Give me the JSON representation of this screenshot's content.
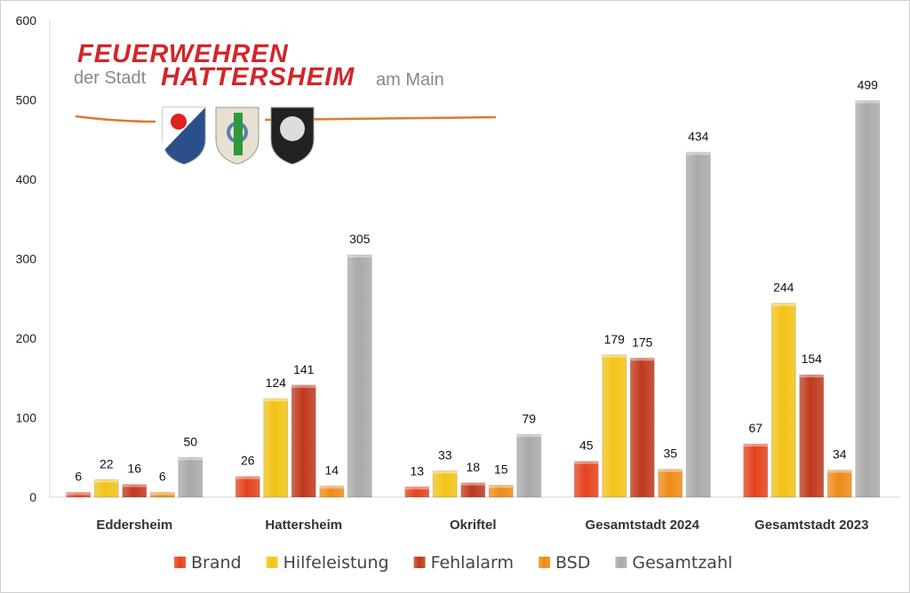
{
  "logo": {
    "line1": "FEUERWEHREN",
    "prefix": "der Stadt",
    "line2": "HATTERSHEIM",
    "suffix": "am Main"
  },
  "chart_data": {
    "type": "bar",
    "title": "",
    "xlabel": "",
    "ylabel": "",
    "ylim": [
      0,
      600
    ],
    "yticks": [
      0,
      100,
      200,
      300,
      400,
      500,
      600
    ],
    "grid": false,
    "legend_position": "bottom",
    "categories": [
      "Eddersheim",
      "Hattersheim",
      "Okriftel",
      "Gesamtstadt 2024",
      "Gesamtstadt 2023"
    ],
    "series": [
      {
        "name": "Brand",
        "color": "#e5421d",
        "values": [
          6,
          26,
          13,
          45,
          67
        ]
      },
      {
        "name": "Hilfeleistung",
        "color": "#f2c316",
        "values": [
          22,
          124,
          33,
          179,
          244
        ]
      },
      {
        "name": "Fehlalarm",
        "color": "#c0381c",
        "values": [
          16,
          141,
          18,
          175,
          154
        ]
      },
      {
        "name": "BSD",
        "color": "#ee8a17",
        "values": [
          6,
          14,
          15,
          35,
          34
        ]
      },
      {
        "name": "Gesamtzahl",
        "color": "#a9a9a9",
        "values": [
          50,
          305,
          79,
          434,
          499
        ]
      }
    ]
  }
}
